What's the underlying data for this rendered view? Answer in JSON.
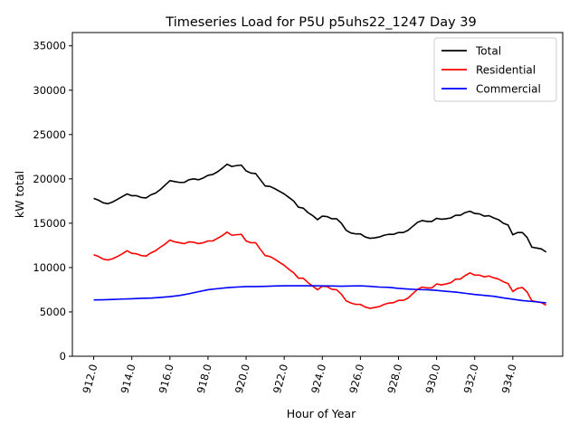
{
  "chart_data": {
    "type": "line",
    "title": "Timeseries Load for P5U p5uhs22_1247  Day 39",
    "xlabel": "Hour of Year",
    "ylabel": "kW total",
    "xlim": [
      910.88,
      936.62
    ],
    "ylim": [
      0,
      36500
    ],
    "x_ticks": [
      912,
      914,
      916,
      918,
      920,
      922,
      924,
      926,
      928,
      930,
      932,
      934
    ],
    "x_tick_labels": [
      "912.0",
      "914.0",
      "916.0",
      "918.0",
      "920.0",
      "922.0",
      "924.0",
      "926.0",
      "928.0",
      "930.0",
      "932.0",
      "934.0"
    ],
    "y_ticks": [
      0,
      5000,
      10000,
      15000,
      20000,
      25000,
      30000,
      35000
    ],
    "y_tick_labels": [
      "0",
      "5000",
      "10000",
      "15000",
      "20000",
      "25000",
      "30000",
      "35000"
    ],
    "grid": false,
    "legend_position": "top-right",
    "series": [
      {
        "name": "Total",
        "color": "#000000",
        "points": [
          [
            912.0,
            17800
          ],
          [
            912.25,
            17600
          ],
          [
            912.5,
            17300
          ],
          [
            912.75,
            17200
          ],
          [
            913.0,
            17400
          ],
          [
            913.25,
            17700
          ],
          [
            913.5,
            18000
          ],
          [
            913.75,
            18300
          ],
          [
            914.0,
            18100
          ],
          [
            914.25,
            18100
          ],
          [
            914.5,
            17900
          ],
          [
            914.75,
            17850
          ],
          [
            915.0,
            18200
          ],
          [
            915.25,
            18400
          ],
          [
            915.5,
            18800
          ],
          [
            915.75,
            19300
          ],
          [
            916.0,
            19800
          ],
          [
            916.25,
            19700
          ],
          [
            916.5,
            19600
          ],
          [
            916.75,
            19600
          ],
          [
            917.0,
            19900
          ],
          [
            917.25,
            20000
          ],
          [
            917.5,
            19900
          ],
          [
            917.75,
            20100
          ],
          [
            918.0,
            20400
          ],
          [
            918.25,
            20500
          ],
          [
            918.5,
            20800
          ],
          [
            918.75,
            21200
          ],
          [
            919.0,
            21650
          ],
          [
            919.25,
            21400
          ],
          [
            919.5,
            21500
          ],
          [
            919.75,
            21550
          ],
          [
            920.0,
            20900
          ],
          [
            920.25,
            20650
          ],
          [
            920.5,
            20600
          ],
          [
            920.75,
            19900
          ],
          [
            921.0,
            19200
          ],
          [
            921.25,
            19150
          ],
          [
            921.5,
            18900
          ],
          [
            921.75,
            18600
          ],
          [
            922.0,
            18300
          ],
          [
            922.25,
            17900
          ],
          [
            922.5,
            17500
          ],
          [
            922.75,
            16800
          ],
          [
            923.0,
            16700
          ],
          [
            923.25,
            16200
          ],
          [
            923.5,
            15850
          ],
          [
            923.75,
            15400
          ],
          [
            924.0,
            15800
          ],
          [
            924.25,
            15750
          ],
          [
            924.5,
            15500
          ],
          [
            924.75,
            15500
          ],
          [
            925.0,
            15000
          ],
          [
            925.25,
            14200
          ],
          [
            925.5,
            13900
          ],
          [
            925.75,
            13800
          ],
          [
            926.0,
            13800
          ],
          [
            926.25,
            13450
          ],
          [
            926.5,
            13300
          ],
          [
            926.75,
            13350
          ],
          [
            927.0,
            13450
          ],
          [
            927.25,
            13650
          ],
          [
            927.5,
            13750
          ],
          [
            927.75,
            13750
          ],
          [
            928.0,
            13950
          ],
          [
            928.25,
            13950
          ],
          [
            928.5,
            14200
          ],
          [
            928.75,
            14650
          ],
          [
            929.0,
            15100
          ],
          [
            929.25,
            15300
          ],
          [
            929.5,
            15200
          ],
          [
            929.75,
            15200
          ],
          [
            930.0,
            15550
          ],
          [
            930.25,
            15450
          ],
          [
            930.5,
            15500
          ],
          [
            930.75,
            15600
          ],
          [
            931.0,
            15900
          ],
          [
            931.25,
            15900
          ],
          [
            931.5,
            16200
          ],
          [
            931.75,
            16350
          ],
          [
            932.0,
            16100
          ],
          [
            932.25,
            16050
          ],
          [
            932.5,
            15800
          ],
          [
            932.75,
            15850
          ],
          [
            933.0,
            15600
          ],
          [
            933.25,
            15400
          ],
          [
            933.5,
            15000
          ],
          [
            933.75,
            14800
          ],
          [
            934.0,
            13700
          ],
          [
            934.25,
            13950
          ],
          [
            934.5,
            13950
          ],
          [
            934.75,
            13400
          ],
          [
            935.0,
            12300
          ],
          [
            935.25,
            12200
          ],
          [
            935.5,
            12100
          ],
          [
            935.75,
            11750
          ]
        ]
      },
      {
        "name": "Residential",
        "color": "#ff0000",
        "points": [
          [
            912.0,
            11450
          ],
          [
            912.25,
            11250
          ],
          [
            912.5,
            10950
          ],
          [
            912.75,
            10850
          ],
          [
            913.0,
            11000
          ],
          [
            913.25,
            11250
          ],
          [
            913.5,
            11550
          ],
          [
            913.75,
            11900
          ],
          [
            914.0,
            11600
          ],
          [
            914.25,
            11550
          ],
          [
            914.5,
            11350
          ],
          [
            914.75,
            11300
          ],
          [
            915.0,
            11650
          ],
          [
            915.25,
            11900
          ],
          [
            915.5,
            12300
          ],
          [
            915.75,
            12650
          ],
          [
            916.0,
            13100
          ],
          [
            916.25,
            12900
          ],
          [
            916.5,
            12800
          ],
          [
            916.75,
            12700
          ],
          [
            917.0,
            12900
          ],
          [
            917.25,
            12850
          ],
          [
            917.5,
            12700
          ],
          [
            917.75,
            12800
          ],
          [
            918.0,
            13000
          ],
          [
            918.25,
            13000
          ],
          [
            918.5,
            13300
          ],
          [
            918.75,
            13600
          ],
          [
            919.0,
            14000
          ],
          [
            919.25,
            13650
          ],
          [
            919.5,
            13700
          ],
          [
            919.75,
            13750
          ],
          [
            920.0,
            13000
          ],
          [
            920.25,
            12800
          ],
          [
            920.5,
            12800
          ],
          [
            920.75,
            12050
          ],
          [
            921.0,
            11350
          ],
          [
            921.25,
            11250
          ],
          [
            921.5,
            10950
          ],
          [
            921.75,
            10600
          ],
          [
            922.0,
            10250
          ],
          [
            922.25,
            9800
          ],
          [
            922.5,
            9400
          ],
          [
            922.75,
            8800
          ],
          [
            923.0,
            8800
          ],
          [
            923.25,
            8300
          ],
          [
            923.5,
            7900
          ],
          [
            923.75,
            7500
          ],
          [
            924.0,
            7900
          ],
          [
            924.25,
            7850
          ],
          [
            924.5,
            7550
          ],
          [
            924.75,
            7500
          ],
          [
            925.0,
            7000
          ],
          [
            925.25,
            6250
          ],
          [
            925.5,
            6000
          ],
          [
            925.75,
            5850
          ],
          [
            926.0,
            5850
          ],
          [
            926.25,
            5550
          ],
          [
            926.5,
            5400
          ],
          [
            926.75,
            5500
          ],
          [
            927.0,
            5600
          ],
          [
            927.25,
            5850
          ],
          [
            927.5,
            6000
          ],
          [
            927.75,
            6050
          ],
          [
            928.0,
            6300
          ],
          [
            928.25,
            6300
          ],
          [
            928.5,
            6550
          ],
          [
            928.75,
            7050
          ],
          [
            929.0,
            7550
          ],
          [
            929.25,
            7800
          ],
          [
            929.5,
            7700
          ],
          [
            929.75,
            7700
          ],
          [
            930.0,
            8150
          ],
          [
            930.25,
            8050
          ],
          [
            930.5,
            8150
          ],
          [
            930.75,
            8300
          ],
          [
            931.0,
            8700
          ],
          [
            931.25,
            8700
          ],
          [
            931.5,
            9100
          ],
          [
            931.75,
            9400
          ],
          [
            932.0,
            9150
          ],
          [
            932.25,
            9150
          ],
          [
            932.5,
            8950
          ],
          [
            932.75,
            9050
          ],
          [
            933.0,
            8850
          ],
          [
            933.25,
            8700
          ],
          [
            933.5,
            8400
          ],
          [
            933.75,
            8200
          ],
          [
            934.0,
            7300
          ],
          [
            934.25,
            7650
          ],
          [
            934.5,
            7750
          ],
          [
            934.75,
            7250
          ],
          [
            935.0,
            6250
          ],
          [
            935.25,
            6150
          ],
          [
            935.5,
            6050
          ],
          [
            935.75,
            5750
          ]
        ]
      },
      {
        "name": "Commercial",
        "color": "#0000ff",
        "points": [
          [
            912.0,
            6350
          ],
          [
            912.5,
            6370
          ],
          [
            913.0,
            6400
          ],
          [
            913.5,
            6450
          ],
          [
            914.0,
            6480
          ],
          [
            914.5,
            6530
          ],
          [
            915.0,
            6560
          ],
          [
            915.5,
            6630
          ],
          [
            916.0,
            6720
          ],
          [
            916.5,
            6850
          ],
          [
            917.0,
            7050
          ],
          [
            917.5,
            7280
          ],
          [
            918.0,
            7500
          ],
          [
            918.5,
            7620
          ],
          [
            919.0,
            7730
          ],
          [
            919.5,
            7800
          ],
          [
            920.0,
            7860
          ],
          [
            920.5,
            7860
          ],
          [
            921.0,
            7880
          ],
          [
            921.5,
            7920
          ],
          [
            922.0,
            7950
          ],
          [
            922.5,
            7950
          ],
          [
            923.0,
            7950
          ],
          [
            923.5,
            7950
          ],
          [
            924.0,
            7940
          ],
          [
            924.5,
            7920
          ],
          [
            925.0,
            7900
          ],
          [
            925.5,
            7920
          ],
          [
            926.0,
            7940
          ],
          [
            926.5,
            7880
          ],
          [
            927.0,
            7800
          ],
          [
            927.5,
            7770
          ],
          [
            928.0,
            7650
          ],
          [
            928.5,
            7580
          ],
          [
            929.0,
            7520
          ],
          [
            929.5,
            7500
          ],
          [
            930.0,
            7420
          ],
          [
            930.5,
            7320
          ],
          [
            931.0,
            7230
          ],
          [
            931.5,
            7100
          ],
          [
            932.0,
            6960
          ],
          [
            932.5,
            6860
          ],
          [
            933.0,
            6760
          ],
          [
            933.5,
            6580
          ],
          [
            934.0,
            6430
          ],
          [
            934.5,
            6280
          ],
          [
            935.0,
            6180
          ],
          [
            935.5,
            6080
          ],
          [
            935.75,
            6020
          ]
        ]
      }
    ]
  }
}
